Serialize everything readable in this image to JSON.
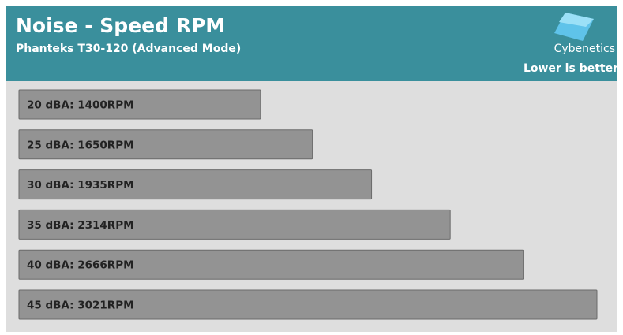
{
  "chart_data": {
    "type": "bar",
    "orientation": "horizontal",
    "title": "Noise - Speed RPM",
    "subtitle": "Phanteks T30-120 (Advanced Mode)",
    "brand": "Cybenetics",
    "annotation": "Lower is better",
    "categories": [
      "20 dBA: 1400RPM",
      "25 dBA: 1650RPM",
      "30 dBA: 1935RPM",
      "35 dBA: 2314RPM",
      "40 dBA: 2666RPM",
      "45 dBA: 3021RPM"
    ],
    "values": [
      1400,
      1650,
      1935,
      2314,
      2666,
      3021
    ],
    "color": "#939393",
    "xlim": [
      236,
      3021
    ]
  }
}
